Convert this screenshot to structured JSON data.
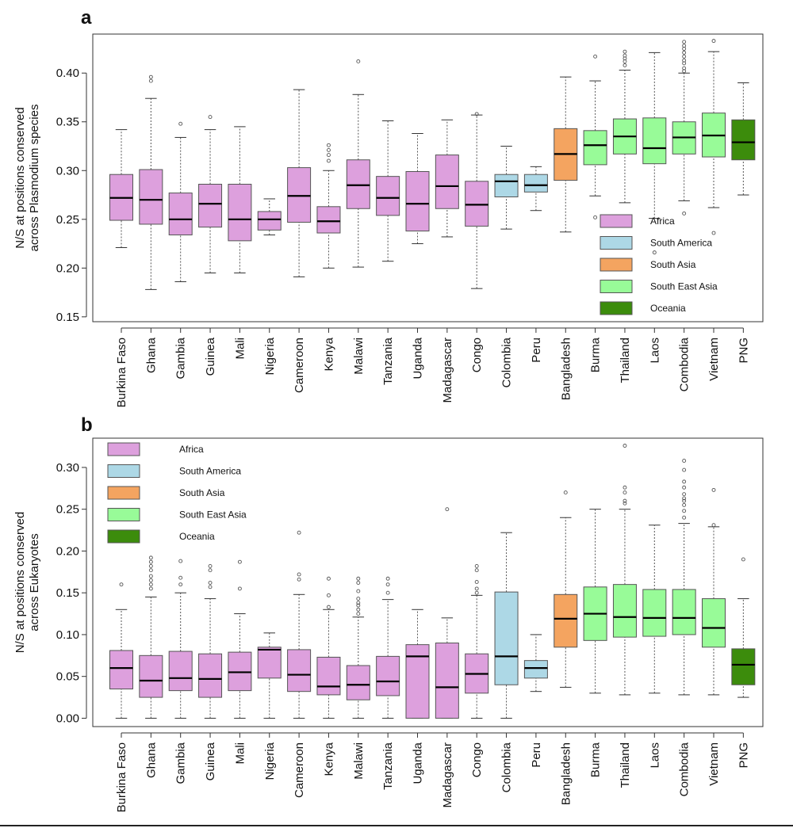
{
  "colors": {
    "Africa": "#DDA0DD",
    "South America": "#ADD8E6",
    "South Asia": "#F4A460",
    "South East Asia": "#98FB98",
    "Oceania": "#3C8C0C"
  },
  "chart_data": [
    {
      "type": "boxplot",
      "panel": "a",
      "ylabel": [
        "N/S at positions conserved",
        "across Plasmodium species"
      ],
      "ylim": [
        0.145,
        0.44
      ],
      "yticks": [
        "0.15",
        "0.20",
        "0.25",
        "0.30",
        "0.35",
        "0.40"
      ],
      "legend": {
        "placement": "bottom-right",
        "entries": [
          "Africa",
          "South America",
          "South Asia",
          "South East Asia",
          "Oceania"
        ]
      },
      "boxes": [
        {
          "label": "Burkina Faso",
          "region": "Africa",
          "whisker_low": 0.221,
          "q1": 0.249,
          "median": 0.272,
          "q3": 0.296,
          "whisker_high": 0.342,
          "outliers": []
        },
        {
          "label": "Ghana",
          "region": "Africa",
          "whisker_low": 0.178,
          "q1": 0.245,
          "median": 0.27,
          "q3": 0.301,
          "whisker_high": 0.374,
          "outliers": [
            0.392,
            0.396
          ]
        },
        {
          "label": "Gambia",
          "region": "Africa",
          "whisker_low": 0.186,
          "q1": 0.234,
          "median": 0.25,
          "q3": 0.277,
          "whisker_high": 0.334,
          "outliers": [
            0.348
          ]
        },
        {
          "label": "Guinea",
          "region": "Africa",
          "whisker_low": 0.195,
          "q1": 0.242,
          "median": 0.266,
          "q3": 0.286,
          "whisker_high": 0.342,
          "outliers": [
            0.355
          ]
        },
        {
          "label": "Mali",
          "region": "Africa",
          "whisker_low": 0.195,
          "q1": 0.228,
          "median": 0.25,
          "q3": 0.286,
          "whisker_high": 0.345,
          "outliers": []
        },
        {
          "label": "Nigeria",
          "region": "Africa",
          "whisker_low": 0.234,
          "q1": 0.239,
          "median": 0.25,
          "q3": 0.258,
          "whisker_high": 0.271,
          "outliers": []
        },
        {
          "label": "Cameroon",
          "region": "Africa",
          "whisker_low": 0.191,
          "q1": 0.247,
          "median": 0.274,
          "q3": 0.303,
          "whisker_high": 0.383,
          "outliers": []
        },
        {
          "label": "Kenya",
          "region": "Africa",
          "whisker_low": 0.2,
          "q1": 0.236,
          "median": 0.248,
          "q3": 0.263,
          "whisker_high": 0.3,
          "outliers": [
            0.31,
            0.316,
            0.321,
            0.326
          ]
        },
        {
          "label": "Malawi",
          "region": "Africa",
          "whisker_low": 0.201,
          "q1": 0.261,
          "median": 0.285,
          "q3": 0.311,
          "whisker_high": 0.378,
          "outliers": [
            0.412
          ]
        },
        {
          "label": "Tanzania",
          "region": "Africa",
          "whisker_low": 0.207,
          "q1": 0.254,
          "median": 0.272,
          "q3": 0.294,
          "whisker_high": 0.351,
          "outliers": []
        },
        {
          "label": "Uganda",
          "region": "Africa",
          "whisker_low": 0.225,
          "q1": 0.238,
          "median": 0.266,
          "q3": 0.299,
          "whisker_high": 0.338,
          "outliers": []
        },
        {
          "label": "Madagascar",
          "region": "Africa",
          "whisker_low": 0.232,
          "q1": 0.261,
          "median": 0.284,
          "q3": 0.316,
          "whisker_high": 0.352,
          "outliers": []
        },
        {
          "label": "Congo",
          "region": "Africa",
          "whisker_low": 0.179,
          "q1": 0.243,
          "median": 0.265,
          "q3": 0.289,
          "whisker_high": 0.357,
          "outliers": [
            0.358
          ]
        },
        {
          "label": "Colombia",
          "region": "South America",
          "whisker_low": 0.24,
          "q1": 0.273,
          "median": 0.289,
          "q3": 0.296,
          "whisker_high": 0.325,
          "outliers": []
        },
        {
          "label": "Peru",
          "region": "South America",
          "whisker_low": 0.259,
          "q1": 0.278,
          "median": 0.285,
          "q3": 0.296,
          "whisker_high": 0.304,
          "outliers": []
        },
        {
          "label": "Bangladesh",
          "region": "South Asia",
          "whisker_low": 0.237,
          "q1": 0.29,
          "median": 0.317,
          "q3": 0.343,
          "whisker_high": 0.396,
          "outliers": []
        },
        {
          "label": "Burma",
          "region": "South East Asia",
          "whisker_low": 0.274,
          "q1": 0.306,
          "median": 0.326,
          "q3": 0.341,
          "whisker_high": 0.392,
          "outliers": [
            0.252,
            0.417
          ]
        },
        {
          "label": "Thailand",
          "region": "South East Asia",
          "whisker_low": 0.267,
          "q1": 0.317,
          "median": 0.335,
          "q3": 0.353,
          "whisker_high": 0.403,
          "outliers": [
            0.408,
            0.412,
            0.415,
            0.418,
            0.422
          ]
        },
        {
          "label": "Laos",
          "region": "South East Asia",
          "whisker_low": 0.251,
          "q1": 0.307,
          "median": 0.323,
          "q3": 0.354,
          "whisker_high": 0.421,
          "outliers": [
            0.216
          ]
        },
        {
          "label": "Combodia",
          "region": "South East Asia",
          "whisker_low": 0.269,
          "q1": 0.317,
          "median": 0.334,
          "q3": 0.35,
          "whisker_high": 0.4,
          "outliers": [
            0.256,
            0.402,
            0.405,
            0.41,
            0.413,
            0.417,
            0.421,
            0.425,
            0.428,
            0.432
          ]
        },
        {
          "label": "Vietnam",
          "region": "South East Asia",
          "whisker_low": 0.262,
          "q1": 0.314,
          "median": 0.336,
          "q3": 0.359,
          "whisker_high": 0.422,
          "outliers": [
            0.236,
            0.433
          ]
        },
        {
          "label": "PNG",
          "region": "Oceania",
          "whisker_low": 0.275,
          "q1": 0.311,
          "median": 0.329,
          "q3": 0.352,
          "whisker_high": 0.39,
          "outliers": []
        }
      ]
    },
    {
      "type": "boxplot",
      "panel": "b",
      "ylabel": [
        "N/S at positions conserved",
        "across Eukaryotes"
      ],
      "ylim": [
        -0.01,
        0.335
      ],
      "yticks": [
        "0.00",
        "0.05",
        "0.10",
        "0.15",
        "0.20",
        "0.25",
        "0.30"
      ],
      "legend": {
        "placement": "top-left",
        "entries": [
          "Africa",
          "South America",
          "South Asia",
          "South East Asia",
          "Oceania"
        ]
      },
      "boxes": [
        {
          "label": "Burkina Faso",
          "region": "Africa",
          "whisker_low": 0.0,
          "q1": 0.035,
          "median": 0.06,
          "q3": 0.081,
          "whisker_high": 0.13,
          "outliers": [
            0.16
          ]
        },
        {
          "label": "Ghana",
          "region": "Africa",
          "whisker_low": 0.0,
          "q1": 0.025,
          "median": 0.045,
          "q3": 0.075,
          "whisker_high": 0.145,
          "outliers": [
            0.155,
            0.16,
            0.165,
            0.17,
            0.177,
            0.182,
            0.187,
            0.192
          ]
        },
        {
          "label": "Gambia",
          "region": "Africa",
          "whisker_low": 0.0,
          "q1": 0.033,
          "median": 0.048,
          "q3": 0.08,
          "whisker_high": 0.15,
          "outliers": [
            0.16,
            0.168,
            0.188
          ]
        },
        {
          "label": "Guinea",
          "region": "Africa",
          "whisker_low": 0.0,
          "q1": 0.025,
          "median": 0.047,
          "q3": 0.077,
          "whisker_high": 0.143,
          "outliers": [
            0.157,
            0.162,
            0.177,
            0.182
          ]
        },
        {
          "label": "Mali",
          "region": "Africa",
          "whisker_low": 0.0,
          "q1": 0.033,
          "median": 0.055,
          "q3": 0.079,
          "whisker_high": 0.125,
          "outliers": [
            0.155,
            0.187
          ]
        },
        {
          "label": "Nigeria",
          "region": "Africa",
          "whisker_low": 0.0,
          "q1": 0.048,
          "median": 0.082,
          "q3": 0.085,
          "whisker_high": 0.102,
          "outliers": []
        },
        {
          "label": "Cameroon",
          "region": "Africa",
          "whisker_low": 0.0,
          "q1": 0.032,
          "median": 0.052,
          "q3": 0.082,
          "whisker_high": 0.148,
          "outliers": [
            0.166,
            0.172,
            0.222
          ]
        },
        {
          "label": "Kenya",
          "region": "Africa",
          "whisker_low": 0.0,
          "q1": 0.028,
          "median": 0.038,
          "q3": 0.073,
          "whisker_high": 0.13,
          "outliers": [
            0.133,
            0.147,
            0.167
          ]
        },
        {
          "label": "Malawi",
          "region": "Africa",
          "whisker_low": 0.0,
          "q1": 0.022,
          "median": 0.04,
          "q3": 0.063,
          "whisker_high": 0.121,
          "outliers": [
            0.125,
            0.13,
            0.135,
            0.138,
            0.143,
            0.152,
            0.162,
            0.167
          ]
        },
        {
          "label": "Tanzania",
          "region": "Africa",
          "whisker_low": 0.0,
          "q1": 0.027,
          "median": 0.044,
          "q3": 0.074,
          "whisker_high": 0.142,
          "outliers": [
            0.15,
            0.16,
            0.167
          ]
        },
        {
          "label": "Uganda",
          "region": "Africa",
          "whisker_low": 0.0,
          "q1": 0.0,
          "median": 0.074,
          "q3": 0.088,
          "whisker_high": 0.13,
          "outliers": []
        },
        {
          "label": "Madagascar",
          "region": "Africa",
          "whisker_low": 0.0,
          "q1": 0.0,
          "median": 0.037,
          "q3": 0.09,
          "whisker_high": 0.12,
          "outliers": [
            0.25
          ]
        },
        {
          "label": "Congo",
          "region": "Africa",
          "whisker_low": 0.0,
          "q1": 0.03,
          "median": 0.053,
          "q3": 0.077,
          "whisker_high": 0.147,
          "outliers": [
            0.15,
            0.155,
            0.163,
            0.177,
            0.182
          ]
        },
        {
          "label": "Colombia",
          "region": "South America",
          "whisker_low": 0.0,
          "q1": 0.04,
          "median": 0.074,
          "q3": 0.151,
          "whisker_high": 0.222,
          "outliers": []
        },
        {
          "label": "Peru",
          "region": "South America",
          "whisker_low": 0.032,
          "q1": 0.048,
          "median": 0.06,
          "q3": 0.069,
          "whisker_high": 0.1,
          "outliers": []
        },
        {
          "label": "Bangladesh",
          "region": "South Asia",
          "whisker_low": 0.037,
          "q1": 0.085,
          "median": 0.119,
          "q3": 0.148,
          "whisker_high": 0.24,
          "outliers": [
            0.27
          ]
        },
        {
          "label": "Burma",
          "region": "South East Asia",
          "whisker_low": 0.03,
          "q1": 0.093,
          "median": 0.125,
          "q3": 0.157,
          "whisker_high": 0.25,
          "outliers": []
        },
        {
          "label": "Thailand",
          "region": "South East Asia",
          "whisker_low": 0.028,
          "q1": 0.097,
          "median": 0.121,
          "q3": 0.16,
          "whisker_high": 0.25,
          "outliers": [
            0.257,
            0.26,
            0.27,
            0.276,
            0.326
          ]
        },
        {
          "label": "Laos",
          "region": "South East Asia",
          "whisker_low": 0.03,
          "q1": 0.098,
          "median": 0.12,
          "q3": 0.154,
          "whisker_high": 0.231,
          "outliers": []
        },
        {
          "label": "Combodia",
          "region": "South East Asia",
          "whisker_low": 0.028,
          "q1": 0.1,
          "median": 0.12,
          "q3": 0.154,
          "whisker_high": 0.233,
          "outliers": [
            0.24,
            0.248,
            0.255,
            0.26,
            0.263,
            0.268,
            0.276,
            0.283,
            0.297,
            0.308
          ]
        },
        {
          "label": "Vietnam",
          "region": "South East Asia",
          "whisker_low": 0.028,
          "q1": 0.085,
          "median": 0.108,
          "q3": 0.143,
          "whisker_high": 0.229,
          "outliers": [
            0.231,
            0.273
          ]
        },
        {
          "label": "PNG",
          "region": "Oceania",
          "whisker_low": 0.025,
          "q1": 0.04,
          "median": 0.064,
          "q3": 0.083,
          "whisker_high": 0.143,
          "outliers": [
            0.19
          ]
        }
      ]
    }
  ]
}
